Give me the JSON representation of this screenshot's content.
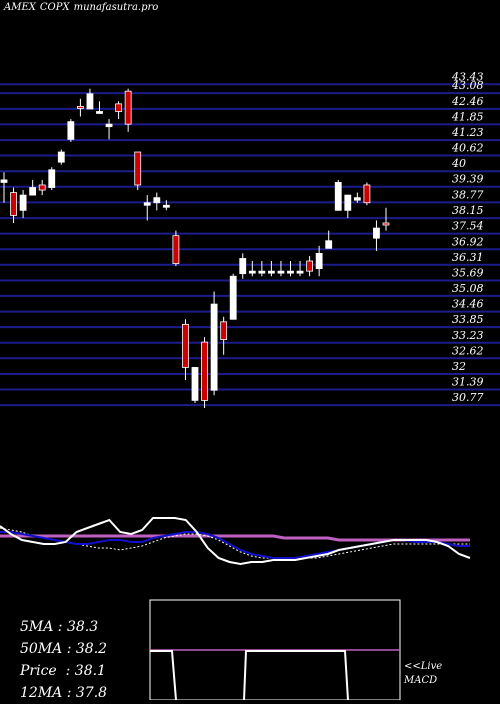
{
  "title": {
    "exchange": "AMEX",
    "symbol": "COPX",
    "site": "munafasutra.pro"
  },
  "chart_data": {
    "type": "candlestick",
    "y_ticks": [
      "43.43",
      "43.08",
      "42.46",
      "41.85",
      "41.23",
      "40.62",
      "40",
      "39.39",
      "38.77",
      "38.15",
      "37.54",
      "36.92",
      "36.31",
      "35.69",
      "35.08",
      "34.46",
      "33.85",
      "33.23",
      "32.62",
      "32",
      "31.39",
      "30.77"
    ],
    "ylim": [
      30.5,
      43.6
    ],
    "candles": [
      {
        "o": 39.5,
        "h": 39.8,
        "l": 38.6,
        "c": 39.4,
        "up": true
      },
      {
        "o": 39.0,
        "h": 39.2,
        "l": 37.8,
        "c": 38.1,
        "up": false
      },
      {
        "o": 38.3,
        "h": 39.1,
        "l": 38.0,
        "c": 38.9,
        "up": true
      },
      {
        "o": 38.9,
        "h": 39.5,
        "l": 38.9,
        "c": 39.2,
        "up": true
      },
      {
        "o": 39.1,
        "h": 39.5,
        "l": 38.9,
        "c": 39.3,
        "up": false
      },
      {
        "o": 39.2,
        "h": 40.0,
        "l": 39.1,
        "c": 39.9,
        "up": true
      },
      {
        "o": 40.2,
        "h": 40.7,
        "l": 40.1,
        "c": 40.6,
        "up": true
      },
      {
        "o": 41.1,
        "h": 41.9,
        "l": 41.0,
        "c": 41.8,
        "up": true
      },
      {
        "o": 42.4,
        "h": 42.7,
        "l": 42.0,
        "c": 42.4,
        "up": false
      },
      {
        "o": 42.3,
        "h": 43.1,
        "l": 42.3,
        "c": 42.9,
        "up": true
      },
      {
        "o": 42.2,
        "h": 42.6,
        "l": 42.2,
        "c": 42.2,
        "up": true
      },
      {
        "o": 41.6,
        "h": 41.9,
        "l": 41.1,
        "c": 41.7,
        "up": true
      },
      {
        "o": 42.5,
        "h": 42.6,
        "l": 41.9,
        "c": 42.2,
        "up": false
      },
      {
        "o": 43.0,
        "h": 43.1,
        "l": 41.4,
        "c": 41.7,
        "up": false
      },
      {
        "o": 40.6,
        "h": 40.6,
        "l": 39.1,
        "c": 39.3,
        "up": false
      },
      {
        "o": 38.6,
        "h": 38.9,
        "l": 37.9,
        "c": 38.5,
        "up": true
      },
      {
        "o": 38.6,
        "h": 39.0,
        "l": 38.3,
        "c": 38.8,
        "up": true
      },
      {
        "o": 38.5,
        "h": 38.7,
        "l": 38.3,
        "c": 38.5,
        "up": true
      },
      {
        "o": 37.3,
        "h": 37.5,
        "l": 36.1,
        "c": 36.2,
        "up": false
      },
      {
        "o": 33.8,
        "h": 34.0,
        "l": 31.6,
        "c": 32.1,
        "up": false
      },
      {
        "o": 30.8,
        "h": 32.1,
        "l": 30.7,
        "c": 32.1,
        "up": true
      },
      {
        "o": 33.1,
        "h": 33.3,
        "l": 30.5,
        "c": 30.8,
        "up": false
      },
      {
        "o": 31.2,
        "h": 35.1,
        "l": 31.0,
        "c": 34.6,
        "up": true
      },
      {
        "o": 33.2,
        "h": 34.1,
        "l": 32.6,
        "c": 33.9,
        "up": false
      },
      {
        "o": 34.0,
        "h": 35.8,
        "l": 34.0,
        "c": 35.7,
        "up": true
      },
      {
        "o": 35.8,
        "h": 36.6,
        "l": 35.6,
        "c": 36.4,
        "up": true
      },
      {
        "o": 35.9,
        "h": 36.3,
        "l": 35.7,
        "c": 35.9,
        "up": true
      },
      {
        "o": 35.9,
        "h": 36.3,
        "l": 35.7,
        "c": 35.9,
        "up": true
      },
      {
        "o": 35.9,
        "h": 36.3,
        "l": 35.7,
        "c": 35.9,
        "up": true
      },
      {
        "o": 35.9,
        "h": 36.3,
        "l": 35.7,
        "c": 35.9,
        "up": true
      },
      {
        "o": 35.9,
        "h": 36.3,
        "l": 35.7,
        "c": 35.9,
        "up": true
      },
      {
        "o": 35.9,
        "h": 36.3,
        "l": 35.7,
        "c": 35.9,
        "up": true
      },
      {
        "o": 36.3,
        "h": 36.5,
        "l": 35.7,
        "c": 35.9,
        "up": false
      },
      {
        "o": 36.0,
        "h": 36.9,
        "l": 35.7,
        "c": 36.6,
        "up": true
      },
      {
        "o": 36.8,
        "h": 37.5,
        "l": 36.8,
        "c": 37.1,
        "up": true
      },
      {
        "o": 38.3,
        "h": 39.5,
        "l": 38.3,
        "c": 39.4,
        "up": true
      },
      {
        "o": 38.3,
        "h": 38.9,
        "l": 38.0,
        "c": 38.9,
        "up": true
      },
      {
        "o": 38.7,
        "h": 39.0,
        "l": 38.6,
        "c": 38.8,
        "up": true
      },
      {
        "o": 39.3,
        "h": 39.4,
        "l": 38.5,
        "c": 38.6,
        "up": false
      },
      {
        "o": 37.2,
        "h": 37.9,
        "l": 36.7,
        "c": 37.6,
        "up": true
      },
      {
        "o": 37.8,
        "h": 38.4,
        "l": 37.5,
        "c": 37.8,
        "up": false
      }
    ],
    "macd_panel": {
      "price_line": [
        64,
        56,
        50,
        48,
        46,
        46,
        48,
        58,
        62,
        66,
        70,
        58,
        56,
        60,
        72,
        72,
        72,
        70,
        58,
        42,
        32,
        28,
        26,
        28,
        28,
        30,
        30,
        30,
        32,
        34,
        36,
        40,
        42,
        44,
        46,
        48,
        50,
        50,
        50,
        50,
        48,
        44,
        36,
        32
      ],
      "ma_short": [
        58,
        58,
        56,
        54,
        52,
        50,
        48,
        46,
        46,
        48,
        50,
        50,
        48,
        48,
        52,
        54,
        56,
        58,
        58,
        56,
        52,
        46,
        40,
        36,
        34,
        32,
        32,
        32,
        34,
        36,
        38,
        40,
        42,
        44,
        46,
        48,
        50,
        50,
        48,
        48,
        48,
        46,
        44,
        44
      ],
      "ma_long": [
        54,
        54,
        54,
        54,
        54,
        54,
        54,
        54,
        54,
        54,
        54,
        54,
        54,
        54,
        54,
        54,
        54,
        54,
        54,
        54,
        54,
        54,
        54,
        54,
        54,
        54,
        52,
        52,
        52,
        52,
        52,
        50,
        50,
        50,
        50,
        50,
        50,
        50,
        50,
        50,
        50,
        50,
        50,
        50
      ],
      "signal": [
        62,
        60,
        58,
        54,
        52,
        50,
        48,
        46,
        44,
        42,
        42,
        40,
        42,
        44,
        48,
        52,
        54,
        56,
        56,
        54,
        50,
        44,
        38,
        34,
        32,
        32,
        32,
        32,
        32,
        32,
        34,
        36,
        38,
        40,
        42,
        44,
        46,
        46,
        46,
        46,
        46,
        46,
        46,
        46
      ]
    },
    "indicators": {
      "ma5": "5MA : 38.3",
      "ma50": "50MA : 38.2",
      "price": "Price  : 38.1",
      "ma12": "12MA : 37.8"
    },
    "live_label": "<<Live",
    "macd_label": "MACD"
  }
}
